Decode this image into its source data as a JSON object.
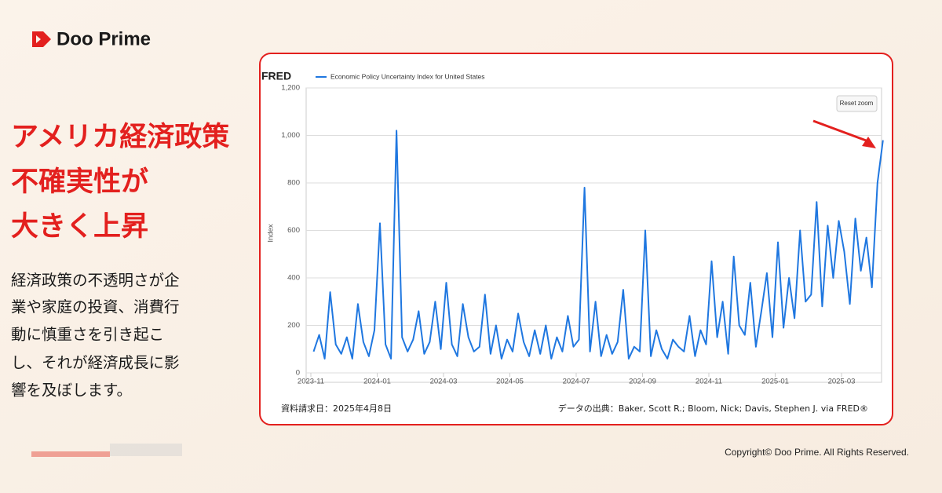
{
  "brand": "Doo Prime",
  "headline": [
    "アメリカ経済政策",
    "不確実性が",
    "大きく上昇"
  ],
  "body": [
    "経済政策の不透明さが企",
    "業や家庭の投資、消費行",
    "動に慎重さを引き起こ",
    "し、それが経済成長に影",
    "響を及ぼします。"
  ],
  "chart_data": {
    "type": "line",
    "source": "FRED",
    "y_label": "Index",
    "button": "Reset zoom",
    "grid": true,
    "x": [
      "2023-11",
      "2023-11",
      "2023-11",
      "2023-11",
      "2023-11",
      "2023-11",
      "2023-12",
      "2023-12",
      "2023-12",
      "2023-12",
      "2023-12",
      "2023-12",
      "2024-01",
      "2024-01",
      "2024-01",
      "2024-01",
      "2024-01",
      "2024-01",
      "2024-02",
      "2024-02",
      "2024-02",
      "2024-02",
      "2024-02",
      "2024-02",
      "2024-03",
      "2024-03",
      "2024-03",
      "2024-03",
      "2024-03",
      "2024-03",
      "2024-04",
      "2024-04",
      "2024-04",
      "2024-04",
      "2024-04",
      "2024-04",
      "2024-05",
      "2024-05",
      "2024-05",
      "2024-05",
      "2024-05",
      "2024-05",
      "2024-06",
      "2024-06",
      "2024-06",
      "2024-06",
      "2024-06",
      "2024-06",
      "2024-07",
      "2024-07",
      "2024-07",
      "2024-07",
      "2024-07",
      "2024-07",
      "2024-08",
      "2024-08",
      "2024-08",
      "2024-08",
      "2024-08",
      "2024-08",
      "2024-09",
      "2024-09",
      "2024-09",
      "2024-09",
      "2024-09",
      "2024-09",
      "2024-10",
      "2024-10",
      "2024-10",
      "2024-10",
      "2024-10",
      "2024-10",
      "2024-11",
      "2024-11",
      "2024-11",
      "2024-11",
      "2024-11",
      "2024-11",
      "2024-12",
      "2024-12",
      "2024-12",
      "2024-12",
      "2024-12",
      "2024-12",
      "2025-01",
      "2025-01",
      "2025-01",
      "2025-01",
      "2025-01",
      "2025-01",
      "2025-02",
      "2025-02",
      "2025-02",
      "2025-02",
      "2025-02",
      "2025-02",
      "2025-03",
      "2025-03",
      "2025-03",
      "2025-03",
      "2025-03",
      "2025-03",
      "2025-04",
      "2025-04"
    ],
    "series": [
      {
        "name": "Economic Policy Uncertainty Index for United States",
        "color": "#1f77e0",
        "values": [
          90,
          160,
          60,
          340,
          120,
          80,
          150,
          60,
          290,
          130,
          70,
          180,
          630,
          120,
          60,
          1020,
          150,
          90,
          140,
          260,
          80,
          130,
          300,
          100,
          380,
          120,
          70,
          290,
          150,
          90,
          110,
          330,
          80,
          200,
          60,
          140,
          90,
          250,
          130,
          70,
          180,
          80,
          200,
          60,
          150,
          90,
          240,
          110,
          140,
          780,
          90,
          300,
          70,
          160,
          80,
          130,
          350,
          60,
          110,
          90,
          600,
          70,
          180,
          100,
          60,
          140,
          110,
          90,
          240,
          70,
          180,
          120,
          470,
          150,
          300,
          80,
          490,
          200,
          160,
          380,
          110,
          260,
          420,
          150,
          550,
          190,
          400,
          230,
          600,
          300,
          330,
          720,
          280,
          620,
          400,
          640,
          510,
          290,
          650,
          430,
          570,
          360,
          800,
          980
        ]
      }
    ],
    "xticks": [
      "2023-11",
      "2024-01",
      "2024-03",
      "2024-05",
      "2024-07",
      "2024-09",
      "2024-11",
      "2025-01",
      "2025-03"
    ],
    "ylim": [
      0,
      1200
    ],
    "yticks": [
      0,
      200,
      400,
      600,
      800,
      {
        "value": 1000,
        "label": "1,000"
      },
      {
        "value": 1200,
        "label": "1,200"
      }
    ]
  },
  "card_footer": {
    "date": "資料請求日：2025年4月8日",
    "source": "データの出典：Baker, Scott R.; Bloom, Nick; Davis, Stephen J. via FRED®"
  },
  "copyright": "Copyright© Doo Prime. All Rights Reserved."
}
